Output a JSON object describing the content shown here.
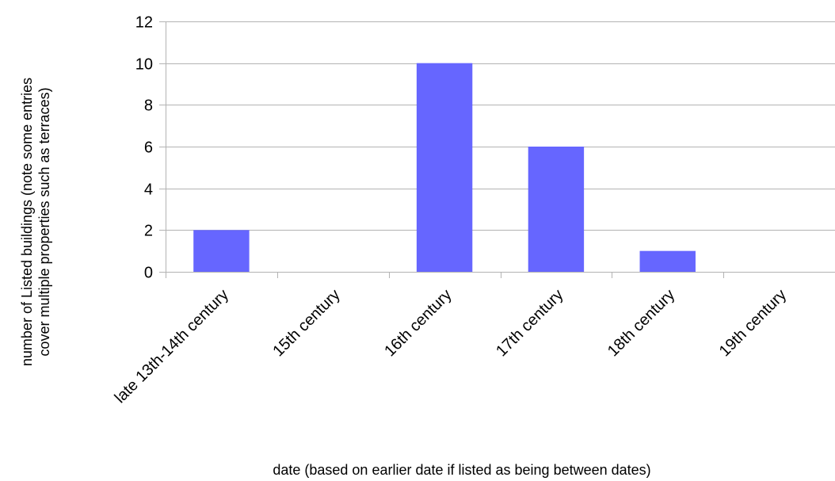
{
  "chart_data": {
    "type": "bar",
    "title": "",
    "xlabel": "date (based on earlier date if listed as being between dates)",
    "ylabel_lines": [
      "number of Listed buildings (note some entries",
      "cover multiple properties such as terraces)"
    ],
    "categories": [
      "late 13th-14th century",
      "15th century",
      "16th century",
      "17th century",
      "18th century",
      "19th century"
    ],
    "values": [
      2,
      0,
      10,
      6,
      1,
      0
    ],
    "ylim": [
      0,
      12
    ],
    "yticks": [
      0,
      2,
      4,
      6,
      8,
      10,
      12
    ],
    "grid": "horizontal",
    "legend": "none",
    "colors": {
      "bar": "#6666ff",
      "grid": "#b3b3b3",
      "axis": "#b3b3b3"
    }
  }
}
